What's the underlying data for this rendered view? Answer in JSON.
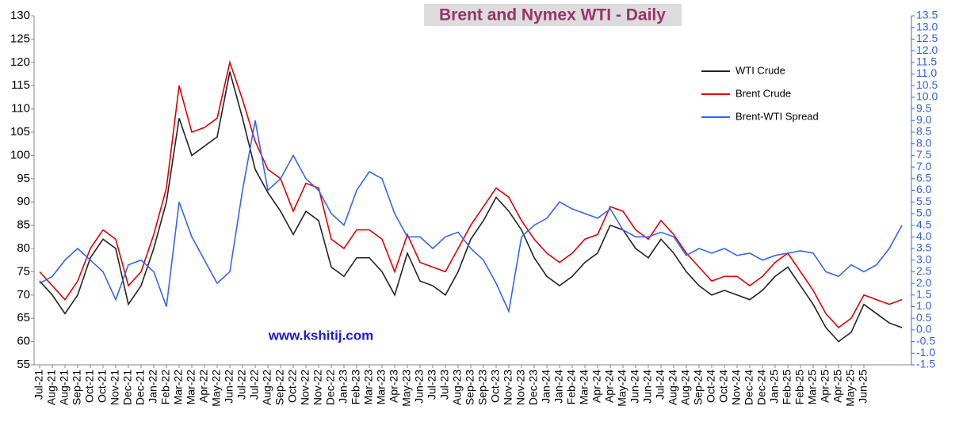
{
  "chart_data": {
    "type": "line",
    "title": "Brent and Nymex  WTI - Daily",
    "watermark": "www.kshitij.com",
    "categories": [
      "Jul-21",
      "Aug-21",
      "Aug-21",
      "Sep-21",
      "Oct-21",
      "Oct-21",
      "Nov-21",
      "Dec-21",
      "Dec-21",
      "Jan-22",
      "Feb-22",
      "Mar-22",
      "Mar-22",
      "Apr-22",
      "May-22",
      "Jun-22",
      "Jul-22",
      "Jul-22",
      "Aug-22",
      "Sep-22",
      "Oct-22",
      "Nov-22",
      "Nov-22",
      "Dec-22",
      "Jan-23",
      "Feb-23",
      "Mar-23",
      "Mar-23",
      "Apr-23",
      "May-23",
      "Jun-23",
      "Jul-23",
      "Jul-23",
      "Aug-23",
      "Sep-23",
      "Sep-23",
      "Oct-23",
      "Nov-23",
      "Nov-23",
      "Dec-23",
      "Jan-24",
      "Jan-24",
      "Feb-24",
      "Mar-24",
      "Apr-24",
      "Apr-24",
      "May-24",
      "Jun-24",
      "Jun-24",
      "Jul-24",
      "Aug-24",
      "Aug-24",
      "Sep-24",
      "Oct-24",
      "Oct-24",
      "Nov-24",
      "Dec-24",
      "Dec-24",
      "Jan-25",
      "Feb-25",
      "Feb-25",
      "Mar-25",
      "Apr-25",
      "Apr-25",
      "May-25",
      "Jun-25",
      null,
      null,
      null
    ],
    "series": [
      {
        "name": "WTI Crude",
        "color": "#222222",
        "values": [
          73,
          70,
          66,
          70,
          78,
          82,
          80,
          68,
          72,
          80,
          90,
          108,
          100,
          102,
          104,
          118,
          108,
          97,
          92,
          88,
          83,
          88,
          86,
          76,
          74,
          78,
          78,
          75,
          70,
          79,
          73,
          72,
          70,
          75,
          82,
          86,
          91,
          88,
          84,
          78,
          74,
          72,
          74,
          77,
          79,
          85,
          84,
          80,
          78,
          82,
          79,
          75,
          72,
          70,
          71,
          70,
          69,
          71,
          74,
          76,
          72,
          68,
          63,
          60,
          62,
          68,
          66,
          64,
          63
        ]
      },
      {
        "name": "Brent Crude",
        "color": "#e00000",
        "values": [
          75,
          72,
          69,
          73,
          80,
          84,
          82,
          72,
          75,
          83,
          93,
          115,
          105,
          106,
          108,
          120,
          112,
          103,
          97,
          95,
          88,
          94,
          93,
          82,
          80,
          84,
          84,
          82,
          75,
          83,
          77,
          76,
          75,
          80,
          85,
          89,
          93,
          91,
          86,
          82,
          79,
          77,
          79,
          82,
          83,
          89,
          88,
          84,
          82,
          86,
          83,
          79,
          76,
          73,
          74,
          74,
          72,
          74,
          77,
          79,
          75,
          71,
          66,
          63,
          65,
          70,
          69,
          68,
          69
        ]
      },
      {
        "name": "Brent-WTI Spread",
        "color": "#3366ee",
        "axis": "y2",
        "values": [
          2.0,
          2.3,
          3.0,
          3.5,
          3.0,
          2.5,
          1.3,
          2.8,
          3.0,
          2.5,
          1.0,
          5.5,
          4.0,
          3.0,
          2.0,
          2.5,
          6.0,
          9.0,
          6.0,
          6.5,
          7.5,
          6.5,
          6.0,
          5.0,
          4.5,
          6.0,
          6.8,
          6.5,
          5.0,
          4.0,
          4.0,
          3.5,
          4.0,
          4.2,
          3.5,
          3.0,
          2.0,
          0.8,
          4.0,
          4.5,
          4.8,
          5.5,
          5.2,
          5.0,
          4.8,
          5.2,
          4.3,
          4.0,
          4.0,
          4.2,
          4.0,
          3.2,
          3.5,
          3.3,
          3.5,
          3.2,
          3.3,
          3.0,
          3.2,
          3.3,
          3.4,
          3.3,
          2.5,
          2.3,
          2.8,
          2.5,
          2.8,
          3.5,
          4.5
        ]
      }
    ],
    "ylim": [
      55,
      130
    ],
    "yticks": [
      55,
      60,
      65,
      70,
      75,
      80,
      85,
      90,
      95,
      100,
      105,
      110,
      115,
      120,
      125,
      130
    ],
    "y2lim": [
      -1.5,
      13.5
    ],
    "y2ticks": [
      {
        "value": -1.5,
        "label": "-1.5"
      },
      {
        "value": -1,
        "label": "-1.0"
      },
      {
        "value": -0.5,
        "label": "-0.5"
      },
      {
        "value": 0,
        "label": "0.0"
      },
      {
        "value": 0.5,
        "label": "0.5"
      },
      {
        "value": 1,
        "label": "1.0"
      },
      {
        "value": 1.5,
        "label": "1.5"
      },
      {
        "value": 2,
        "label": "2.0"
      },
      {
        "value": 2.5,
        "label": "2.5"
      },
      {
        "value": 3,
        "label": "3.0"
      },
      {
        "value": 3.5,
        "label": "3.5"
      },
      {
        "value": 4,
        "label": "4.0"
      },
      {
        "value": 4.5,
        "label": "4.5"
      },
      {
        "value": 5,
        "label": "5.0"
      },
      {
        "value": 5.5,
        "label": "5.5"
      },
      {
        "value": 6,
        "label": "6.0"
      },
      {
        "value": 6.5,
        "label": "6.5"
      },
      {
        "value": 7,
        "label": "7.0"
      },
      {
        "value": 7.5,
        "label": "7.5"
      },
      {
        "value": 8,
        "label": "8.0"
      },
      {
        "value": 8.5,
        "label": "8.5"
      },
      {
        "value": 9,
        "label": "9.0"
      },
      {
        "value": 9.5,
        "label": "9.5"
      },
      {
        "value": 10,
        "label": "10.0"
      },
      {
        "value": 10.5,
        "label": "10.5"
      },
      {
        "value": 11,
        "label": "11.0"
      },
      {
        "value": 11.5,
        "label": "11.5"
      },
      {
        "value": 12,
        "label": "12.0"
      },
      {
        "value": 12.5,
        "label": "12.5"
      },
      {
        "value": 13,
        "label": "13.0"
      },
      {
        "value": 13.5,
        "label": "13.5"
      }
    ],
    "grid": false,
    "legend": "top-right"
  }
}
